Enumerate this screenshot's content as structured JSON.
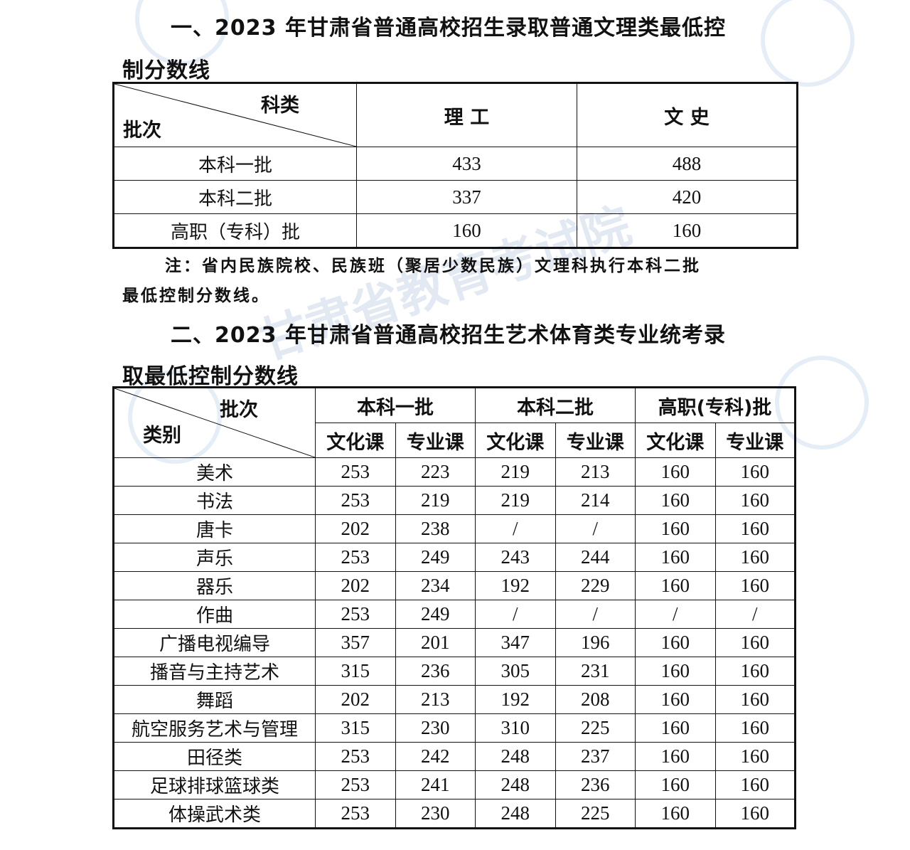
{
  "watermark": "甘肃省教育考试院",
  "section1": {
    "title_line1": "一、2023 年甘肃省普通高校招生录取普通文理类最低控",
    "title_line2": "制分数线",
    "corner_top": "科类",
    "corner_bottom": "批次",
    "columns": [
      "理 工",
      "文 史"
    ],
    "rows": [
      {
        "batch": "本科一批",
        "values": [
          "433",
          "488"
        ]
      },
      {
        "batch": "本科二批",
        "values": [
          "337",
          "420"
        ]
      },
      {
        "batch": "高职（专科）批",
        "values": [
          "160",
          "160"
        ]
      }
    ],
    "note_line1": "注：省内民族院校、民族班（聚居少数民族）文理科执行本科二批",
    "note_line2": "最低控制分数线。"
  },
  "section2": {
    "title_line1": "二、2023 年甘肃省普通高校招生艺术体育类专业统考录",
    "title_line2": "取最低控制分数线",
    "corner_top": "批次",
    "corner_bottom": "类别",
    "batches": [
      "本科一批",
      "本科二批",
      "高职(专科)批"
    ],
    "subcolumns": [
      "文化课",
      "专业课",
      "文化课",
      "专业课",
      "文化课",
      "专业课"
    ],
    "rows": [
      {
        "category": "美术",
        "values": [
          "253",
          "223",
          "219",
          "213",
          "160",
          "160"
        ]
      },
      {
        "category": "书法",
        "values": [
          "253",
          "219",
          "219",
          "214",
          "160",
          "160"
        ]
      },
      {
        "category": "唐卡",
        "values": [
          "202",
          "238",
          "/",
          "/",
          "160",
          "160"
        ]
      },
      {
        "category": "声乐",
        "values": [
          "253",
          "249",
          "243",
          "244",
          "160",
          "160"
        ]
      },
      {
        "category": "器乐",
        "values": [
          "202",
          "234",
          "192",
          "229",
          "160",
          "160"
        ]
      },
      {
        "category": "作曲",
        "values": [
          "253",
          "249",
          "/",
          "/",
          "/",
          "/"
        ]
      },
      {
        "category": "广播电视编导",
        "values": [
          "357",
          "201",
          "347",
          "196",
          "160",
          "160"
        ]
      },
      {
        "category": "播音与主持艺术",
        "values": [
          "315",
          "236",
          "305",
          "231",
          "160",
          "160"
        ]
      },
      {
        "category": "舞蹈",
        "values": [
          "202",
          "213",
          "192",
          "208",
          "160",
          "160"
        ]
      },
      {
        "category": "航空服务艺术与管理",
        "values": [
          "315",
          "230",
          "310",
          "225",
          "160",
          "160"
        ]
      },
      {
        "category": "田径类",
        "values": [
          "253",
          "242",
          "248",
          "237",
          "160",
          "160"
        ]
      },
      {
        "category": "足球排球篮球类",
        "values": [
          "253",
          "241",
          "248",
          "236",
          "160",
          "160"
        ]
      },
      {
        "category": "体操武术类",
        "values": [
          "253",
          "230",
          "248",
          "225",
          "160",
          "160"
        ]
      }
    ]
  }
}
